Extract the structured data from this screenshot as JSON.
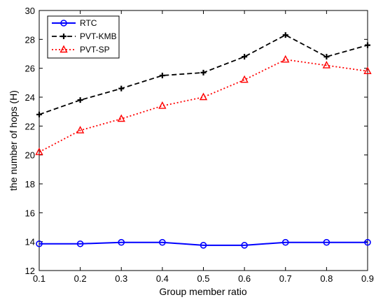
{
  "chart_data": {
    "type": "line",
    "xlabel": "Group member ratio",
    "ylabel": "the number of hops (H)",
    "xlim": [
      0.1,
      0.9
    ],
    "ylim": [
      12,
      30
    ],
    "xticks": [
      "0.1",
      "0.2",
      "0.3",
      "0.4",
      "0.5",
      "0.6",
      "0.7",
      "0.8",
      "0.9"
    ],
    "yticks": [
      "12",
      "14",
      "16",
      "18",
      "20",
      "22",
      "24",
      "26",
      "28",
      "30"
    ],
    "x": [
      0.1,
      0.2,
      0.3,
      0.4,
      0.5,
      0.6,
      0.7,
      0.8,
      0.9
    ],
    "grid": false,
    "legend_position": "top-left",
    "series": [
      {
        "name": "RTC",
        "values": [
          13.85,
          13.85,
          13.95,
          13.95,
          13.75,
          13.75,
          13.95,
          13.95,
          13.95
        ],
        "color": "#0000ff",
        "line_style": "solid",
        "marker": "circle"
      },
      {
        "name": "PVT-KMB",
        "values": [
          22.8,
          23.8,
          24.6,
          25.5,
          25.7,
          26.8,
          28.3,
          26.8,
          27.6
        ],
        "color": "#000000",
        "line_style": "dashed",
        "marker": "plus"
      },
      {
        "name": "PVT-SP",
        "values": [
          20.2,
          21.7,
          22.5,
          23.4,
          24.0,
          25.2,
          26.6,
          26.2,
          25.8
        ],
        "color": "#ff0000",
        "line_style": "dotted",
        "marker": "triangle"
      }
    ]
  }
}
